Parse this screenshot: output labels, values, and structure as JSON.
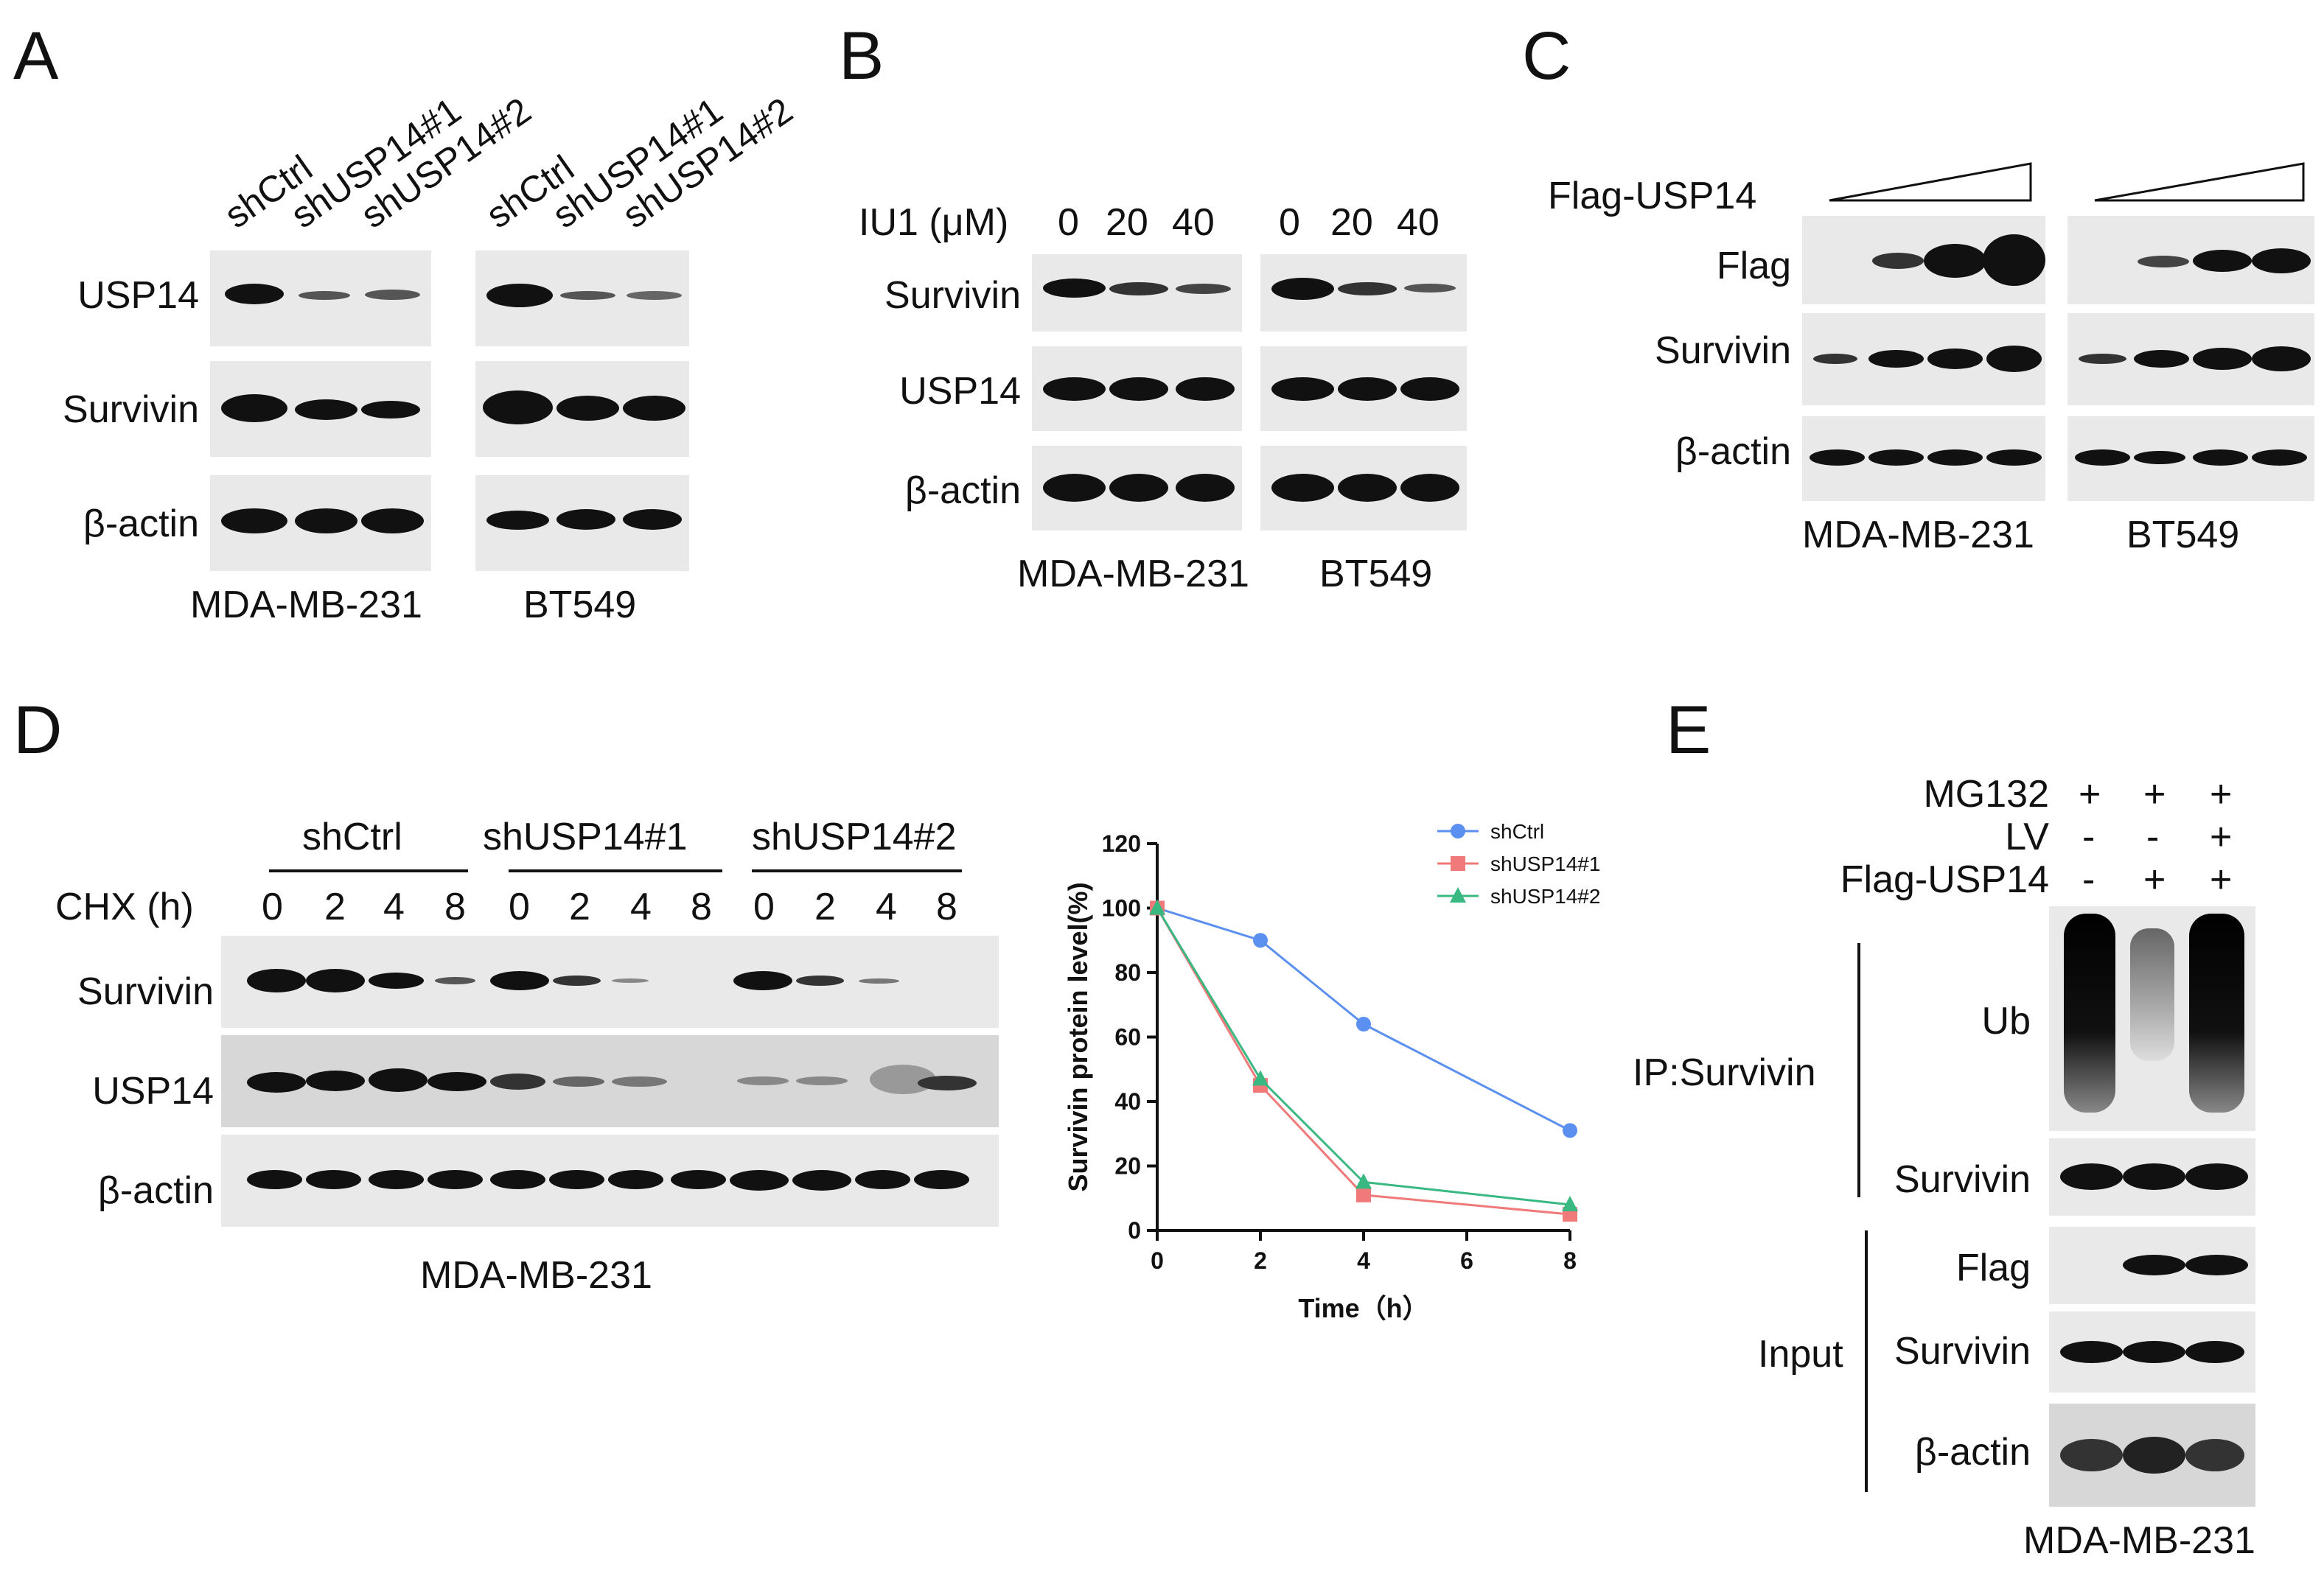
{
  "panels": {
    "A": {
      "letter": "A",
      "lanes": [
        "shCtrl",
        "shUSP14#1",
        "shUSP14#2"
      ],
      "rows": [
        "USP14",
        "Survivin",
        "β-actin"
      ],
      "cell_lines": [
        "MDA-MB-231",
        "BT549"
      ]
    },
    "B": {
      "letter": "B",
      "treatment": "IU1 (μM)",
      "doses": [
        "0",
        "20",
        "40"
      ],
      "rows": [
        "Survivin",
        "USP14",
        "β-actin"
      ],
      "cell_lines": [
        "MDA-MB-231",
        "BT549"
      ]
    },
    "C": {
      "letter": "C",
      "treatment": "Flag-USP14",
      "rows": [
        "Flag",
        "Survivin",
        "β-actin"
      ],
      "cell_lines": [
        "MDA-MB-231",
        "BT549"
      ]
    },
    "D": {
      "letter": "D",
      "groups": [
        "shCtrl",
        "shUSP14#1",
        "shUSP14#2"
      ],
      "treatment": "CHX (h)",
      "times": [
        "0",
        "2",
        "4",
        "8"
      ],
      "rows": [
        "Survivin",
        "USP14",
        "β-actin"
      ],
      "cell_line": "MDA-MB-231"
    },
    "E": {
      "letter": "E",
      "conditions": [
        {
          "name": "MG132",
          "values": [
            "+",
            "+",
            "+"
          ]
        },
        {
          "name": "LV",
          "values": [
            "-",
            "-",
            "+"
          ]
        },
        {
          "name": "Flag-USP14",
          "values": [
            "-",
            "+",
            "+"
          ]
        }
      ],
      "ip_label": "IP:Survivin",
      "input_label": "Input",
      "ip_rows": [
        "Ub",
        "Survivin"
      ],
      "input_rows": [
        "Flag",
        "Survivin",
        "β-actin"
      ],
      "cell_line": "MDA-MB-231"
    }
  },
  "chart_data": {
    "type": "line",
    "xlabel": "Time（h）",
    "ylabel": "Survivin protein level(%)",
    "x": [
      0,
      2,
      4,
      8
    ],
    "xticks": [
      "0",
      "2",
      "4",
      "6",
      "8"
    ],
    "yticks": [
      "0",
      "20",
      "40",
      "60",
      "80",
      "100",
      "120"
    ],
    "xlim": [
      0,
      8
    ],
    "ylim": [
      0,
      120
    ],
    "legend_position": "top-right",
    "series": [
      {
        "name": "shCtrl",
        "values": [
          100,
          90,
          64,
          31
        ],
        "color": "#5b8ff0",
        "marker": "circle"
      },
      {
        "name": "shUSP14#1",
        "values": [
          100,
          45,
          11,
          5
        ],
        "color": "#f07a7a",
        "marker": "square"
      },
      {
        "name": "shUSP14#2",
        "values": [
          100,
          47,
          15,
          8
        ],
        "color": "#39b882",
        "marker": "triangle"
      }
    ]
  }
}
